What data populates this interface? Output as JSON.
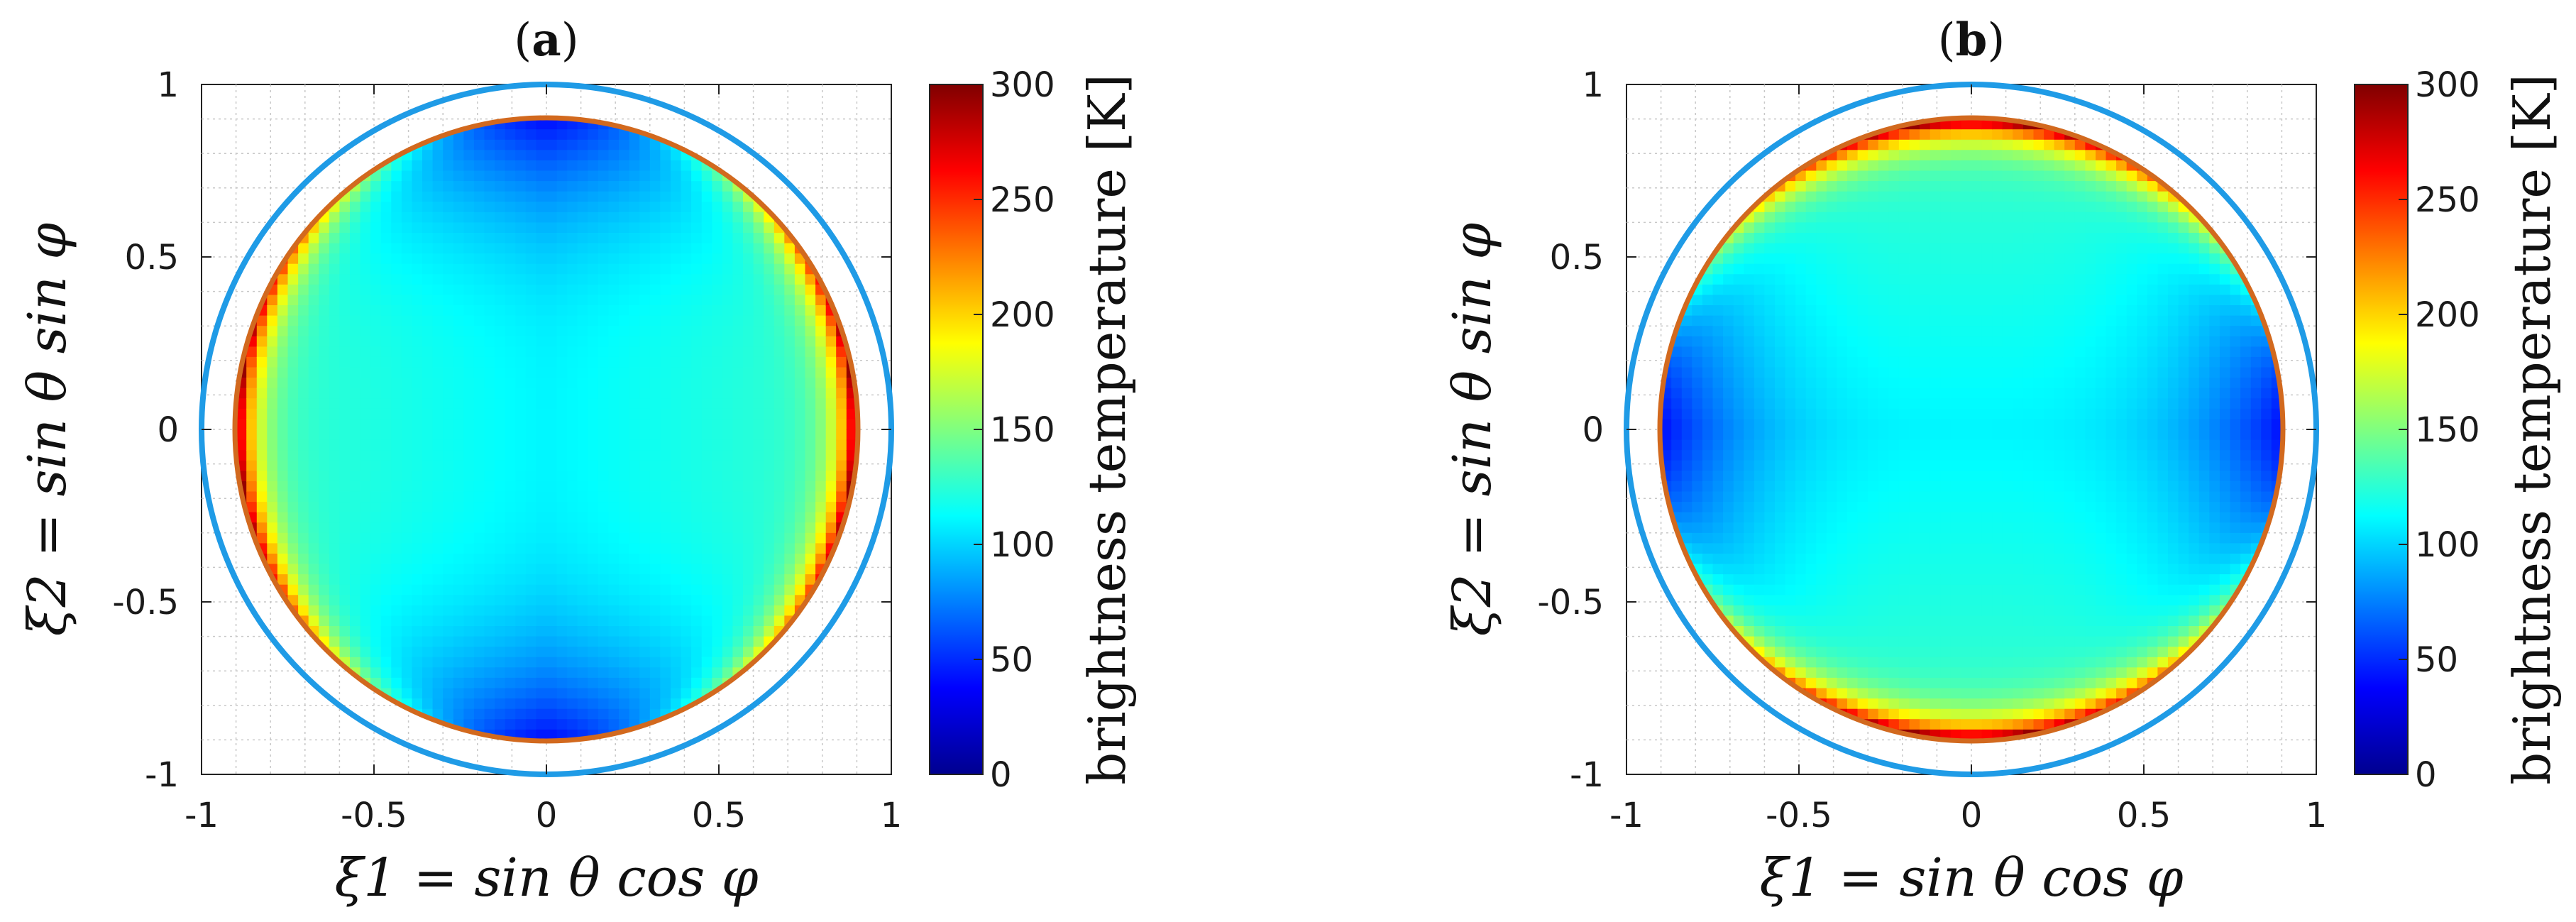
{
  "chart_data": [
    {
      "type": "heatmap",
      "title": "(a)",
      "title_letter": "a",
      "xlabel": "ξ1 = sin θ cos φ",
      "ylabel": "ξ2 = sin θ sin φ",
      "xlim": [
        -1,
        1
      ],
      "ylim": [
        -1,
        1
      ],
      "xticks": [
        "-1",
        "-0.5",
        "0",
        "0.5",
        "1"
      ],
      "yticks": [
        "1",
        "0.5",
        "0",
        "-0.5",
        "-1"
      ],
      "grid": true,
      "colorbar": {
        "label": "brightness temperature [K]",
        "range": [
          0,
          300
        ],
        "ticks": [
          "300",
          "250",
          "200",
          "150",
          "100",
          "50",
          "0"
        ]
      },
      "outer_circle_radius": 1.0,
      "disk_radius": 0.9,
      "pattern": "vertical-bright",
      "brightness_low_K": 40,
      "brightness_mid_K": 110,
      "brightness_high_K": 280
    },
    {
      "type": "heatmap",
      "title": "(b)",
      "title_letter": "b",
      "xlabel": "ξ1 = sin θ cos φ",
      "ylabel": "ξ2 = sin θ sin φ",
      "xlim": [
        -1,
        1
      ],
      "ylim": [
        -1,
        1
      ],
      "xticks": [
        "-1",
        "-0.5",
        "0",
        "0.5",
        "1"
      ],
      "yticks": [
        "1",
        "0.5",
        "0",
        "-0.5",
        "-1"
      ],
      "grid": true,
      "colorbar": {
        "label": "brightness temperature [K]",
        "range": [
          0,
          300
        ],
        "ticks": [
          "300",
          "250",
          "200",
          "150",
          "100",
          "50",
          "0"
        ]
      },
      "outer_circle_radius": 1.0,
      "disk_radius": 0.9,
      "pattern": "horizontal-bright",
      "brightness_low_K": 40,
      "brightness_mid_K": 110,
      "brightness_high_K": 280
    }
  ],
  "colors": {
    "outer_circle": "#1f9be6",
    "disk_edge": "#d2691e",
    "axis": "#222222",
    "grid": "#c8c8c8"
  }
}
